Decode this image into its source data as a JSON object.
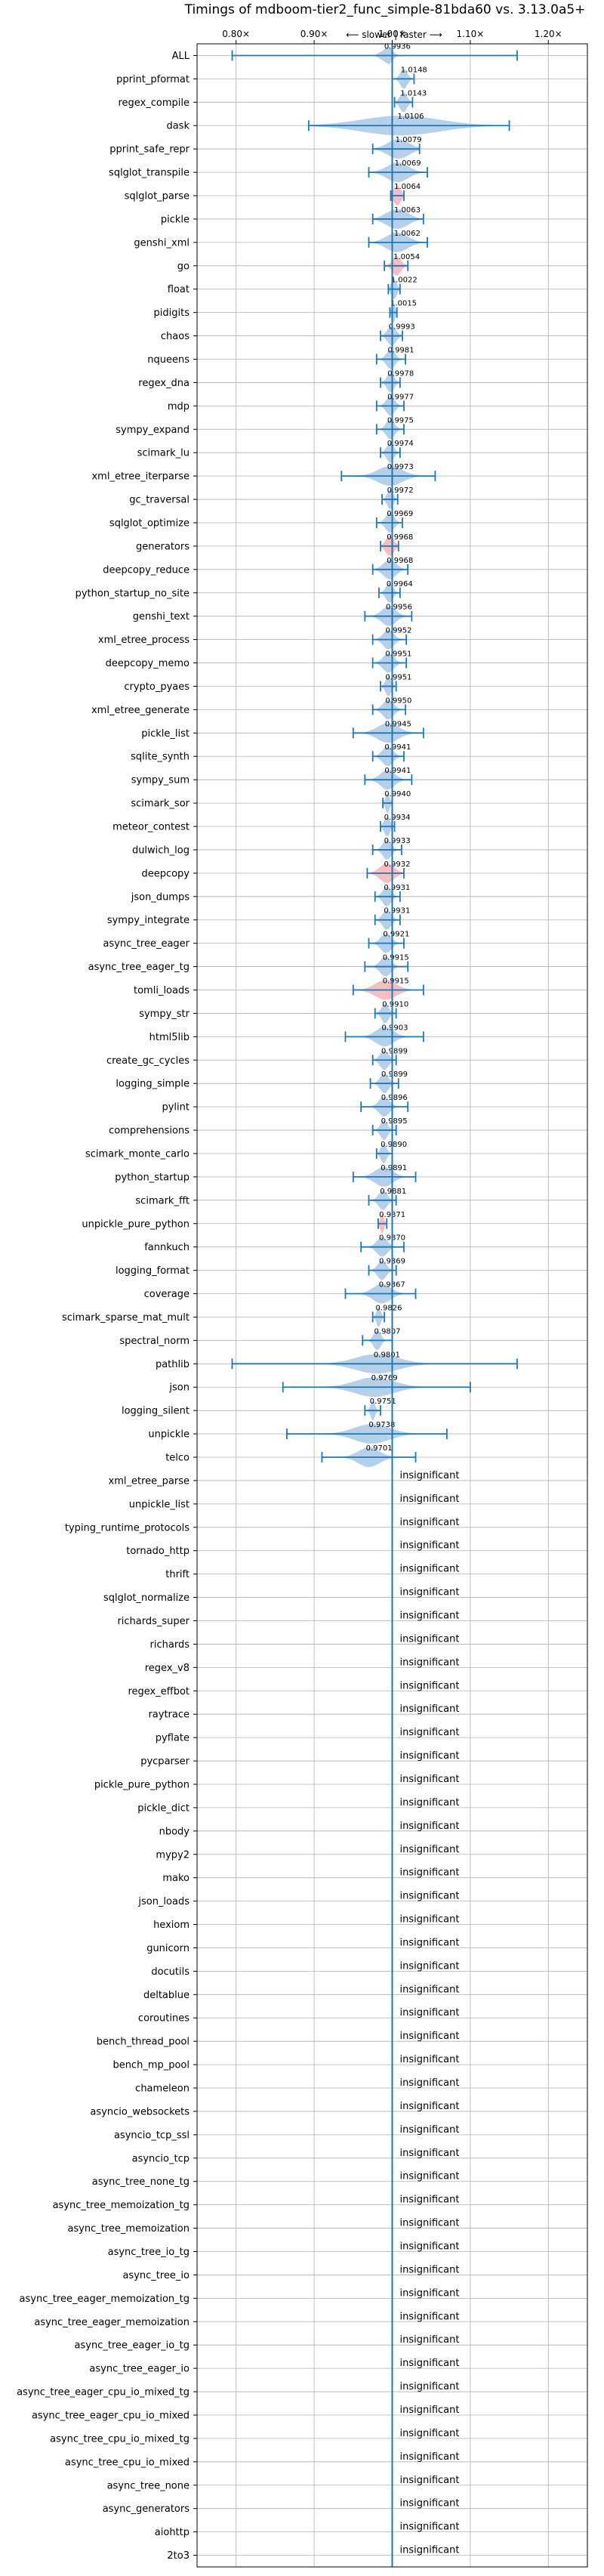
{
  "chart_data": {
    "type": "violin",
    "title": "Timings of mdboom-tier2_func_simple-81bda60 vs. 3.13.0a5+",
    "subtitle": "⟵ slower | faster ⟶",
    "xlim": [
      0.75,
      1.25
    ],
    "x_ticks": [
      0.8,
      0.9,
      1.0,
      1.1,
      1.2
    ],
    "x_tick_labels": [
      "0.80×",
      "0.90×",
      "1.00×",
      "1.10×",
      "1.20×"
    ],
    "reference_line": 1.0,
    "grid": true,
    "insignificant_label": "insignificant",
    "benchmarks": [
      {
        "name": "ALL",
        "value": 0.9936,
        "label": "0.9936",
        "lo": 0.795,
        "hi": 1.16,
        "spread": 0.012,
        "color": "blue"
      },
      {
        "name": "pprint_pformat",
        "value": 1.0148,
        "label": "1.0148",
        "lo": 1.0,
        "hi": 1.028,
        "spread": 0.01,
        "color": "blue"
      },
      {
        "name": "regex_compile",
        "value": 1.0143,
        "label": "1.0143",
        "lo": 1.003,
        "hi": 1.026,
        "spread": 0.01,
        "color": "blue"
      },
      {
        "name": "dask",
        "value": 1.0106,
        "label": "1.0106",
        "lo": 0.893,
        "hi": 1.15,
        "spread": 0.11,
        "color": "blue"
      },
      {
        "name": "pprint_safe_repr",
        "value": 1.0079,
        "label": "1.0079",
        "lo": 0.975,
        "hi": 1.035,
        "spread": 0.03,
        "color": "blue"
      },
      {
        "name": "sqlglot_transpile",
        "value": 1.0069,
        "label": "1.0069",
        "lo": 0.97,
        "hi": 1.045,
        "spread": 0.03,
        "color": "blue"
      },
      {
        "name": "sqlglot_parse",
        "value": 1.0064,
        "label": "1.0064",
        "lo": 0.998,
        "hi": 1.015,
        "spread": 0.01,
        "color": "red"
      },
      {
        "name": "pickle",
        "value": 1.0063,
        "label": "1.0063",
        "lo": 0.975,
        "hi": 1.04,
        "spread": 0.03,
        "color": "blue"
      },
      {
        "name": "genshi_xml",
        "value": 1.0062,
        "label": "1.0062",
        "lo": 0.97,
        "hi": 1.045,
        "spread": 0.03,
        "color": "blue"
      },
      {
        "name": "go",
        "value": 1.0054,
        "label": "1.0054",
        "lo": 0.99,
        "hi": 1.02,
        "spread": 0.012,
        "color": "red"
      },
      {
        "name": "float",
        "value": 1.0022,
        "label": "1.0022",
        "lo": 0.995,
        "hi": 1.01,
        "spread": 0.008,
        "color": "blue"
      },
      {
        "name": "pidigits",
        "value": 1.0015,
        "label": "1.0015",
        "lo": 0.997,
        "hi": 1.006,
        "spread": 0.005,
        "color": "blue"
      },
      {
        "name": "chaos",
        "value": 0.9993,
        "label": "0.9993",
        "lo": 0.985,
        "hi": 1.013,
        "spread": 0.012,
        "color": "blue"
      },
      {
        "name": "nqueens",
        "value": 0.9981,
        "label": "0.9981",
        "lo": 0.98,
        "hi": 1.017,
        "spread": 0.012,
        "color": "blue"
      },
      {
        "name": "regex_dna",
        "value": 0.9978,
        "label": "0.9978",
        "lo": 0.985,
        "hi": 1.01,
        "spread": 0.01,
        "color": "blue"
      },
      {
        "name": "mdp",
        "value": 0.9977,
        "label": "0.9977",
        "lo": 0.98,
        "hi": 1.015,
        "spread": 0.012,
        "color": "blue"
      },
      {
        "name": "sympy_expand",
        "value": 0.9975,
        "label": "0.9975",
        "lo": 0.98,
        "hi": 1.015,
        "spread": 0.012,
        "color": "blue"
      },
      {
        "name": "scimark_lu",
        "value": 0.9974,
        "label": "0.9974",
        "lo": 0.985,
        "hi": 1.01,
        "spread": 0.01,
        "color": "blue"
      },
      {
        "name": "xml_etree_iterparse",
        "value": 0.9973,
        "label": "0.9973",
        "lo": 0.935,
        "hi": 1.055,
        "spread": 0.035,
        "color": "blue"
      },
      {
        "name": "gc_traversal",
        "value": 0.9972,
        "label": "0.9972",
        "lo": 0.987,
        "hi": 1.007,
        "spread": 0.008,
        "color": "blue"
      },
      {
        "name": "sqlglot_optimize",
        "value": 0.9969,
        "label": "0.9969",
        "lo": 0.98,
        "hi": 1.013,
        "spread": 0.012,
        "color": "blue"
      },
      {
        "name": "generators",
        "value": 0.9968,
        "label": "0.9968",
        "lo": 0.985,
        "hi": 1.008,
        "spread": 0.012,
        "color": "red"
      },
      {
        "name": "deepcopy_reduce",
        "value": 0.9968,
        "label": "0.9968",
        "lo": 0.975,
        "hi": 1.02,
        "spread": 0.018,
        "color": "blue"
      },
      {
        "name": "python_startup_no_site",
        "value": 0.9964,
        "label": "0.9964",
        "lo": 0.983,
        "hi": 1.01,
        "spread": 0.01,
        "color": "blue"
      },
      {
        "name": "genshi_text",
        "value": 0.9956,
        "label": "0.9956",
        "lo": 0.965,
        "hi": 1.025,
        "spread": 0.02,
        "color": "blue"
      },
      {
        "name": "xml_etree_process",
        "value": 0.9952,
        "label": "0.9952",
        "lo": 0.975,
        "hi": 1.018,
        "spread": 0.015,
        "color": "blue"
      },
      {
        "name": "deepcopy_memo",
        "value": 0.9951,
        "label": "0.9951",
        "lo": 0.975,
        "hi": 1.018,
        "spread": 0.015,
        "color": "blue"
      },
      {
        "name": "crypto_pyaes",
        "value": 0.9951,
        "label": "0.9951",
        "lo": 0.985,
        "hi": 1.005,
        "spread": 0.008,
        "color": "blue"
      },
      {
        "name": "xml_etree_generate",
        "value": 0.995,
        "label": "0.9950",
        "lo": 0.975,
        "hi": 1.017,
        "spread": 0.015,
        "color": "blue"
      },
      {
        "name": "pickle_list",
        "value": 0.9945,
        "label": "0.9945",
        "lo": 0.95,
        "hi": 1.04,
        "spread": 0.03,
        "color": "blue"
      },
      {
        "name": "sqlite_synth",
        "value": 0.9941,
        "label": "0.9941",
        "lo": 0.975,
        "hi": 1.015,
        "spread": 0.015,
        "color": "blue"
      },
      {
        "name": "sympy_sum",
        "value": 0.9941,
        "label": "0.9941",
        "lo": 0.965,
        "hi": 1.025,
        "spread": 0.02,
        "color": "blue"
      },
      {
        "name": "scimark_sor",
        "value": 0.994,
        "label": "0.9940",
        "lo": 0.988,
        "hi": 1.0,
        "spread": 0.006,
        "color": "blue"
      },
      {
        "name": "meteor_contest",
        "value": 0.9934,
        "label": "0.9934",
        "lo": 0.985,
        "hi": 1.003,
        "spread": 0.008,
        "color": "blue"
      },
      {
        "name": "dulwich_log",
        "value": 0.9933,
        "label": "0.9933",
        "lo": 0.975,
        "hi": 1.012,
        "spread": 0.012,
        "color": "blue"
      },
      {
        "name": "deepcopy",
        "value": 0.9932,
        "label": "0.9932",
        "lo": 0.968,
        "hi": 1.015,
        "spread": 0.02,
        "color": "red"
      },
      {
        "name": "json_dumps",
        "value": 0.9931,
        "label": "0.9931",
        "lo": 0.978,
        "hi": 1.01,
        "spread": 0.012,
        "color": "blue"
      },
      {
        "name": "sympy_integrate",
        "value": 0.9931,
        "label": "0.9931",
        "lo": 0.978,
        "hi": 1.01,
        "spread": 0.012,
        "color": "blue"
      },
      {
        "name": "async_tree_eager",
        "value": 0.9921,
        "label": "0.9921",
        "lo": 0.97,
        "hi": 1.015,
        "spread": 0.015,
        "color": "blue"
      },
      {
        "name": "async_tree_eager_tg",
        "value": 0.9915,
        "label": "0.9915",
        "lo": 0.965,
        "hi": 1.02,
        "spread": 0.015,
        "color": "blue"
      },
      {
        "name": "tomli_loads",
        "value": 0.9915,
        "label": "0.9915",
        "lo": 0.95,
        "hi": 1.04,
        "spread": 0.03,
        "color": "red"
      },
      {
        "name": "sympy_str",
        "value": 0.991,
        "label": "0.9910",
        "lo": 0.978,
        "hi": 1.005,
        "spread": 0.01,
        "color": "blue"
      },
      {
        "name": "html5lib",
        "value": 0.9903,
        "label": "0.9903",
        "lo": 0.94,
        "hi": 1.04,
        "spread": 0.025,
        "color": "blue"
      },
      {
        "name": "create_gc_cycles",
        "value": 0.9899,
        "label": "0.9899",
        "lo": 0.975,
        "hi": 1.005,
        "spread": 0.012,
        "color": "blue"
      },
      {
        "name": "logging_simple",
        "value": 0.9899,
        "label": "0.9899",
        "lo": 0.972,
        "hi": 1.008,
        "spread": 0.012,
        "color": "blue"
      },
      {
        "name": "pylint",
        "value": 0.9896,
        "label": "0.9896",
        "lo": 0.96,
        "hi": 1.02,
        "spread": 0.015,
        "color": "blue"
      },
      {
        "name": "comprehensions",
        "value": 0.9895,
        "label": "0.9895",
        "lo": 0.975,
        "hi": 1.005,
        "spread": 0.01,
        "color": "blue"
      },
      {
        "name": "scimark_monte_carlo",
        "value": 0.989,
        "label": "0.9890",
        "lo": 0.98,
        "hi": 1.0,
        "spread": 0.008,
        "color": "blue"
      },
      {
        "name": "python_startup",
        "value": 0.9891,
        "label": "0.9891",
        "lo": 0.95,
        "hi": 1.03,
        "spread": 0.025,
        "color": "blue"
      },
      {
        "name": "scimark_fft",
        "value": 0.9881,
        "label": "0.9881",
        "lo": 0.97,
        "hi": 1.005,
        "spread": 0.012,
        "color": "blue"
      },
      {
        "name": "unpickle_pure_python",
        "value": 0.9871,
        "label": "0.9871",
        "lo": 0.982,
        "hi": 0.993,
        "spread": 0.005,
        "color": "red"
      },
      {
        "name": "fannkuch",
        "value": 0.987,
        "label": "0.9870",
        "lo": 0.96,
        "hi": 1.015,
        "spread": 0.015,
        "color": "blue"
      },
      {
        "name": "logging_format",
        "value": 0.9869,
        "label": "0.9869",
        "lo": 0.97,
        "hi": 1.005,
        "spread": 0.012,
        "color": "blue"
      },
      {
        "name": "coverage",
        "value": 0.9867,
        "label": "0.9867",
        "lo": 0.94,
        "hi": 1.03,
        "spread": 0.025,
        "color": "blue"
      },
      {
        "name": "scimark_sparse_mat_mult",
        "value": 0.9826,
        "label": "0.9826",
        "lo": 0.975,
        "hi": 0.99,
        "spread": 0.006,
        "color": "blue"
      },
      {
        "name": "spectral_norm",
        "value": 0.9807,
        "label": "0.9807",
        "lo": 0.962,
        "hi": 1.0,
        "spread": 0.01,
        "color": "blue"
      },
      {
        "name": "pathlib",
        "value": 0.9801,
        "label": "0.9801",
        "lo": 0.795,
        "hi": 1.16,
        "spread": 0.06,
        "color": "blue"
      },
      {
        "name": "json",
        "value": 0.9769,
        "label": "0.9769",
        "lo": 0.86,
        "hi": 1.1,
        "spread": 0.055,
        "color": "blue"
      },
      {
        "name": "logging_silent",
        "value": 0.9751,
        "label": "0.9751",
        "lo": 0.965,
        "hi": 0.985,
        "spread": 0.006,
        "color": "blue"
      },
      {
        "name": "unpickle",
        "value": 0.9738,
        "label": "0.9738",
        "lo": 0.865,
        "hi": 1.07,
        "spread": 0.05,
        "color": "blue"
      },
      {
        "name": "telco",
        "value": 0.9701,
        "label": "0.9701",
        "lo": 0.91,
        "hi": 1.03,
        "spread": 0.03,
        "color": "blue"
      },
      {
        "name": "xml_etree_parse",
        "insignificant": true
      },
      {
        "name": "unpickle_list",
        "insignificant": true
      },
      {
        "name": "typing_runtime_protocols",
        "insignificant": true
      },
      {
        "name": "tornado_http",
        "insignificant": true
      },
      {
        "name": "thrift",
        "insignificant": true
      },
      {
        "name": "sqlglot_normalize",
        "insignificant": true
      },
      {
        "name": "richards_super",
        "insignificant": true
      },
      {
        "name": "richards",
        "insignificant": true
      },
      {
        "name": "regex_v8",
        "insignificant": true
      },
      {
        "name": "regex_effbot",
        "insignificant": true
      },
      {
        "name": "raytrace",
        "insignificant": true
      },
      {
        "name": "pyflate",
        "insignificant": true
      },
      {
        "name": "pycparser",
        "insignificant": true
      },
      {
        "name": "pickle_pure_python",
        "insignificant": true
      },
      {
        "name": "pickle_dict",
        "insignificant": true
      },
      {
        "name": "nbody",
        "insignificant": true
      },
      {
        "name": "mypy2",
        "insignificant": true
      },
      {
        "name": "mako",
        "insignificant": true
      },
      {
        "name": "json_loads",
        "insignificant": true
      },
      {
        "name": "hexiom",
        "insignificant": true
      },
      {
        "name": "gunicorn",
        "insignificant": true
      },
      {
        "name": "docutils",
        "insignificant": true
      },
      {
        "name": "deltablue",
        "insignificant": true
      },
      {
        "name": "coroutines",
        "insignificant": true
      },
      {
        "name": "bench_thread_pool",
        "insignificant": true
      },
      {
        "name": "bench_mp_pool",
        "insignificant": true
      },
      {
        "name": "chameleon",
        "insignificant": true
      },
      {
        "name": "asyncio_websockets",
        "insignificant": true
      },
      {
        "name": "asyncio_tcp_ssl",
        "insignificant": true
      },
      {
        "name": "asyncio_tcp",
        "insignificant": true
      },
      {
        "name": "async_tree_none_tg",
        "insignificant": true
      },
      {
        "name": "async_tree_memoization_tg",
        "insignificant": true
      },
      {
        "name": "async_tree_memoization",
        "insignificant": true
      },
      {
        "name": "async_tree_io_tg",
        "insignificant": true
      },
      {
        "name": "async_tree_io",
        "insignificant": true
      },
      {
        "name": "async_tree_eager_memoization_tg",
        "insignificant": true
      },
      {
        "name": "async_tree_eager_memoization",
        "insignificant": true
      },
      {
        "name": "async_tree_eager_io_tg",
        "insignificant": true
      },
      {
        "name": "async_tree_eager_io",
        "insignificant": true
      },
      {
        "name": "async_tree_eager_cpu_io_mixed_tg",
        "insignificant": true
      },
      {
        "name": "async_tree_eager_cpu_io_mixed",
        "insignificant": true
      },
      {
        "name": "async_tree_cpu_io_mixed_tg",
        "insignificant": true
      },
      {
        "name": "async_tree_cpu_io_mixed",
        "insignificant": true
      },
      {
        "name": "async_tree_none",
        "insignificant": true
      },
      {
        "name": "async_generators",
        "insignificant": true
      },
      {
        "name": "aiohttp",
        "insignificant": true
      },
      {
        "name": "2to3",
        "insignificant": true
      }
    ],
    "colors": {
      "blue_fill": "#a9c8e6",
      "red_fill": "#f2b3b8",
      "line": "#1f77b4",
      "grid": "#b0b0b0"
    }
  }
}
